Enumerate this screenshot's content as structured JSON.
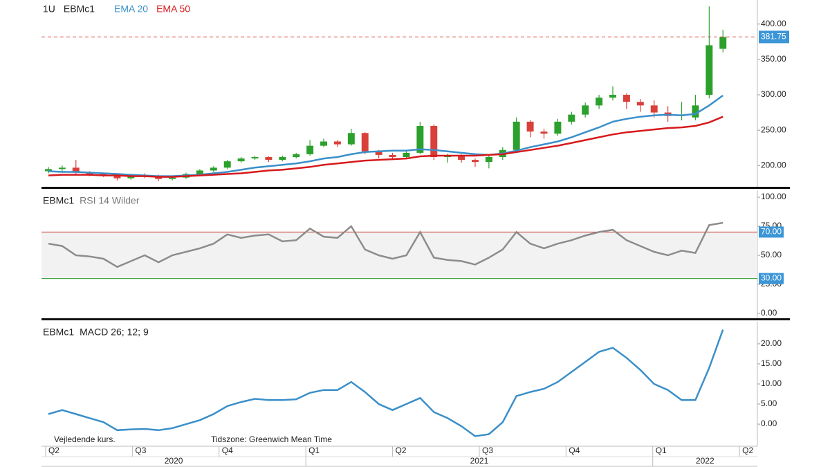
{
  "chart_data": [
    {
      "type": "candlestick",
      "interval": "1U",
      "symbol": "EBMc1",
      "series": [
        {
          "name": "EBMc1",
          "up_color": "#2ca02c",
          "down_color": "#d9403a",
          "open": [
            192,
            195,
            197,
            190,
            188,
            187,
            182,
            186,
            185,
            181,
            183,
            188,
            193,
            197,
            206,
            210,
            212,
            208,
            212,
            216,
            228,
            234,
            230,
            246,
            220,
            215,
            212,
            218,
            256,
            212,
            214,
            208,
            205,
            212,
            222,
            262,
            248,
            245,
            262,
            272,
            285,
            296,
            300,
            290,
            285,
            275,
            270,
            268,
            300,
            365
          ],
          "high": [
            198,
            200,
            208,
            192,
            190,
            189,
            188,
            189,
            187,
            185,
            190,
            195,
            199,
            208,
            212,
            214,
            213,
            214,
            218,
            236,
            238,
            236,
            252,
            247,
            222,
            218,
            220,
            262,
            258,
            217,
            216,
            210,
            214,
            226,
            268,
            264,
            252,
            266,
            276,
            289,
            300,
            312,
            302,
            294,
            292,
            284,
            290,
            300,
            425,
            392
          ],
          "low": [
            189,
            192,
            187,
            185,
            184,
            179,
            180,
            182,
            178,
            179,
            181,
            186,
            191,
            195,
            204,
            208,
            205,
            206,
            210,
            214,
            226,
            226,
            228,
            216,
            210,
            208,
            209,
            216,
            208,
            204,
            204,
            198,
            196,
            208,
            218,
            240,
            238,
            242,
            258,
            268,
            280,
            292,
            280,
            276,
            268,
            262,
            264,
            264,
            295,
            360
          ],
          "close": [
            195,
            197,
            190,
            188,
            187,
            182,
            186,
            185,
            181,
            183,
            188,
            193,
            197,
            206,
            210,
            212,
            208,
            212,
            216,
            228,
            234,
            230,
            246,
            220,
            215,
            212,
            218,
            256,
            212,
            214,
            208,
            205,
            212,
            222,
            262,
            248,
            245,
            262,
            272,
            285,
            296,
            300,
            290,
            285,
            275,
            270,
            272,
            285,
            370,
            381.75
          ]
        },
        {
          "name": "EMA 20",
          "color": "#3a8fc9",
          "values": [
            192,
            191,
            191,
            190,
            189,
            188,
            187,
            186,
            185,
            185,
            186,
            187,
            189,
            191,
            194,
            197,
            199,
            201,
            203,
            206,
            210,
            212,
            216,
            219,
            220,
            221,
            221,
            223,
            222,
            220,
            218,
            216,
            215,
            217,
            221,
            226,
            230,
            234,
            240,
            247,
            254,
            262,
            266,
            269,
            271,
            272,
            271,
            273,
            285,
            299
          ]
        },
        {
          "name": "EMA 50",
          "color": "#d7191c",
          "values": [
            186,
            187,
            187,
            187,
            186,
            186,
            185,
            185,
            184,
            184,
            185,
            186,
            187,
            188,
            189,
            191,
            193,
            194,
            196,
            198,
            201,
            203,
            205,
            207,
            208,
            209,
            210,
            213,
            214,
            214,
            214,
            214,
            215,
            216,
            219,
            222,
            225,
            228,
            232,
            236,
            240,
            244,
            247,
            249,
            251,
            253,
            254,
            256,
            261,
            269
          ]
        }
      ],
      "last_price": 381.75,
      "last_price_color": "#d9403a",
      "ylim": [
        168,
        434
      ],
      "yticks": [
        {
          "value": 200,
          "label": "200.00"
        },
        {
          "value": 250,
          "label": "250.00"
        },
        {
          "value": 300,
          "label": "300.00"
        },
        {
          "value": 350,
          "label": "350.00"
        },
        {
          "value": 400,
          "label": "400.00"
        }
      ]
    },
    {
      "type": "line",
      "symbol": "EBMc1",
      "series": [
        {
          "name": "RSI 14 Wilder",
          "color": "#8c8c8c",
          "values": [
            60,
            58,
            50,
            49,
            47,
            40,
            45,
            50,
            44,
            50,
            53,
            56,
            60,
            68,
            65,
            67,
            68,
            62,
            63,
            73,
            66,
            65,
            75,
            55,
            50,
            47,
            50,
            70,
            48,
            46,
            45,
            42,
            48,
            55,
            70,
            60,
            56,
            60,
            63,
            67,
            70,
            72,
            63,
            58,
            53,
            50,
            54,
            52,
            76,
            78
          ]
        }
      ],
      "levels": [
        {
          "value": 70,
          "label": "70.00",
          "color": "#c0392b"
        },
        {
          "value": 30,
          "label": "30.00",
          "color": "#2ca02c"
        }
      ],
      "ylim": [
        -5.4,
        106
      ],
      "yticks": [
        {
          "value": 0,
          "label": "0.00"
        },
        {
          "value": 25,
          "label": "25.00"
        },
        {
          "value": 50,
          "label": "50.00"
        },
        {
          "value": 75,
          "label": "75.00"
        },
        {
          "value": 100,
          "label": "100.00"
        }
      ]
    },
    {
      "type": "line",
      "symbol": "EBMc1",
      "series": [
        {
          "name": "MACD 26; 12; 9",
          "color": "#3a8fc9",
          "values": [
            2.5,
            3.5,
            2.5,
            1.5,
            0.5,
            -1.5,
            -1.3,
            -1.2,
            -1.5,
            -1,
            0,
            1,
            2.5,
            4.5,
            5.5,
            6.3,
            6,
            6,
            6.2,
            7.8,
            8.5,
            8.5,
            10.5,
            8,
            5,
            3.5,
            5,
            6.5,
            3,
            1.5,
            -0.5,
            -3,
            -2.5,
            0.5,
            7,
            8,
            8.8,
            10.5,
            13,
            15.5,
            18,
            19,
            16.5,
            13.5,
            10,
            8.5,
            6,
            6,
            14,
            23.5
          ]
        }
      ],
      "ylim": [
        -5.5,
        25.5
      ],
      "yticks": [
        {
          "value": 0,
          "label": "0.00"
        },
        {
          "value": 5,
          "label": "5.00"
        },
        {
          "value": 10,
          "label": "10.00"
        },
        {
          "value": 15,
          "label": "15.00"
        },
        {
          "value": 20,
          "label": "20.00"
        }
      ]
    }
  ],
  "x_axis": {
    "xlim": [
      -0.5,
      51.5
    ],
    "ticks": [
      {
        "value": -0.2,
        "label": "Q2"
      },
      {
        "value": 6.1,
        "label": "Q3"
      },
      {
        "value": 12.4,
        "label": "Q4"
      },
      {
        "value": 18.7,
        "label": "Q1"
      },
      {
        "value": 25.0,
        "label": "Q2"
      },
      {
        "value": 31.3,
        "label": "Q3"
      },
      {
        "value": 37.6,
        "label": "Q4"
      },
      {
        "value": 43.9,
        "label": "Q1"
      },
      {
        "value": 50.2,
        "label": "Q2"
      }
    ],
    "years": [
      "2020",
      "2021",
      "2022"
    ]
  },
  "footer": {
    "note": "Vejledende kurs.",
    "timezone": "Tidszone: Greenwich Mean Time"
  }
}
